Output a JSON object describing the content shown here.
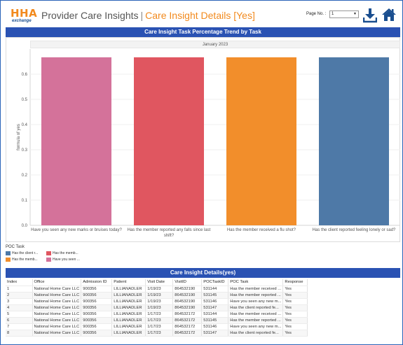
{
  "header": {
    "logo_top": "HHA",
    "logo_bottom": "exchange",
    "title_main": "Provider Care Insights",
    "title_sep": "|",
    "title_detail": "Care Insight Details [Yes]",
    "page_no_label": "Page No. :",
    "page_no_value": "1",
    "icons": [
      "download-icon",
      "home-icon"
    ],
    "accent_color": "#f28a1e",
    "brand_color": "#1a4e8f"
  },
  "chart_section": {
    "title": "Care Insight Task Percentage Trend by Task",
    "bar_color": "#2a52b3"
  },
  "chart_data": {
    "type": "bar",
    "title": "Care Insight Task Percentage Trend by Task",
    "column_header": "January 2023",
    "ylabel": "formula of yes",
    "xlabel": "",
    "ylim": [
      0,
      0.7
    ],
    "yticks": [
      "0.0",
      "0.1",
      "0.2",
      "0.3",
      "0.4",
      "0.5",
      "0.6"
    ],
    "categories": [
      "Have you seen any new marks or bruises today?",
      "Has the member reported any falls since last shift?",
      "Has the member received a flu shot?",
      "Has the client reported feeling lonely or sad?"
    ],
    "category_lines": [
      [
        "Have you seen any new marks or bruises today?"
      ],
      [
        "Has the member reported any falls since last",
        "shift?"
      ],
      [
        "Has the member received a flu shot?"
      ],
      [
        "Has the client reported feeling lonely or sad?"
      ]
    ],
    "values": [
      0.667,
      0.667,
      0.667,
      0.667
    ],
    "colors": [
      "#d4729a",
      "#e05660",
      "#f28e2b",
      "#4e79a7"
    ],
    "grid": true,
    "legend_position": "bottom-left"
  },
  "legend": {
    "title": "POC Task",
    "items": [
      {
        "label": "Has the client r...",
        "color": "#4e79a7"
      },
      {
        "label": "Has the memb...",
        "color": "#e05660"
      },
      {
        "label": "Has the memb...",
        "color": "#f28e2b"
      },
      {
        "label": "Have you seen ...",
        "color": "#d4729a"
      }
    ]
  },
  "table_section": {
    "title": "Care Insight Details(yes)",
    "columns": [
      "Index",
      "Office",
      "Admission ID",
      "Patient",
      "Visit Date",
      "VisitID",
      "POCTaskID",
      "POC Task",
      "Response"
    ],
    "rows": [
      [
        "1",
        "National Home Care LLC",
        "900356",
        "LILLIANADLER",
        "1/19/23",
        "864532190",
        "531144",
        "Has the member received ...",
        "Yes"
      ],
      [
        "2",
        "National Home Care LLC",
        "900356",
        "LILLIANADLER",
        "1/19/23",
        "864532190",
        "531145",
        "Has the member reported ...",
        "Yes"
      ],
      [
        "3",
        "National Home Care LLC",
        "900356",
        "LILLIANADLER",
        "1/19/23",
        "864532190",
        "531146",
        "Have you seen any new m...",
        "Yes"
      ],
      [
        "4",
        "National Home Care LLC",
        "900356",
        "LILLIANADLER",
        "1/19/23",
        "864532190",
        "531147",
        "Has the client reported fe...",
        "Yes"
      ],
      [
        "5",
        "National Home Care LLC",
        "900356",
        "LILLIANADLER",
        "1/17/23",
        "864532172",
        "531144",
        "Has the member received ...",
        "Yes"
      ],
      [
        "6",
        "National Home Care LLC",
        "900356",
        "LILLIANADLER",
        "1/17/23",
        "864532172",
        "531145",
        "Has the member reported ...",
        "Yes"
      ],
      [
        "7",
        "National Home Care LLC",
        "900356",
        "LILLIANADLER",
        "1/17/23",
        "864532172",
        "531146",
        "Have you seen any new m...",
        "Yes"
      ],
      [
        "8",
        "National Home Care LLC",
        "900356",
        "LILLIANADLER",
        "1/17/23",
        "864532172",
        "531147",
        "Has the client reported fe...",
        "Yes"
      ]
    ]
  }
}
